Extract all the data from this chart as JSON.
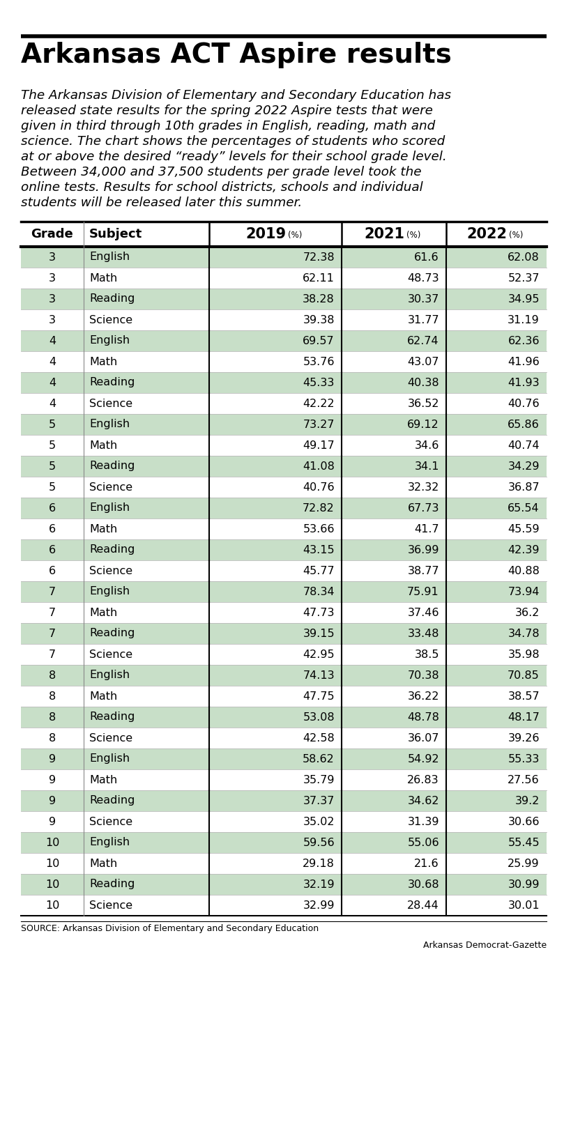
{
  "title": "Arkansas ACT Aspire results",
  "subtitle_lines": [
    "The Arkansas Division of Elementary and Secondary Education has",
    "released state results for the spring 2022 Aspire tests that were",
    "given in third through 10th grades in English, reading, math and",
    "science. The chart shows the percentages of students who scored",
    "at or above the desired “ready” levels for their school grade level.",
    "Between 34,000 and 37,500 students per grade level took the",
    "online tests. Results for school districts, schools and individual",
    "students will be released later this summer."
  ],
  "col_headers": [
    "Grade",
    "Subject",
    "2019",
    "2021",
    "2022"
  ],
  "rows": [
    [
      3,
      "English",
      72.38,
      61.6,
      62.08
    ],
    [
      3,
      "Math",
      62.11,
      48.73,
      52.37
    ],
    [
      3,
      "Reading",
      38.28,
      30.37,
      34.95
    ],
    [
      3,
      "Science",
      39.38,
      31.77,
      31.19
    ],
    [
      4,
      "English",
      69.57,
      62.74,
      62.36
    ],
    [
      4,
      "Math",
      53.76,
      43.07,
      41.96
    ],
    [
      4,
      "Reading",
      45.33,
      40.38,
      41.93
    ],
    [
      4,
      "Science",
      42.22,
      36.52,
      40.76
    ],
    [
      5,
      "English",
      73.27,
      69.12,
      65.86
    ],
    [
      5,
      "Math",
      49.17,
      34.6,
      40.74
    ],
    [
      5,
      "Reading",
      41.08,
      34.1,
      34.29
    ],
    [
      5,
      "Science",
      40.76,
      32.32,
      36.87
    ],
    [
      6,
      "English",
      72.82,
      67.73,
      65.54
    ],
    [
      6,
      "Math",
      53.66,
      41.7,
      45.59
    ],
    [
      6,
      "Reading",
      43.15,
      36.99,
      42.39
    ],
    [
      6,
      "Science",
      45.77,
      38.77,
      40.88
    ],
    [
      7,
      "English",
      78.34,
      75.91,
      73.94
    ],
    [
      7,
      "Math",
      47.73,
      37.46,
      36.2
    ],
    [
      7,
      "Reading",
      39.15,
      33.48,
      34.78
    ],
    [
      7,
      "Science",
      42.95,
      38.5,
      35.98
    ],
    [
      8,
      "English",
      74.13,
      70.38,
      70.85
    ],
    [
      8,
      "Math",
      47.75,
      36.22,
      38.57
    ],
    [
      8,
      "Reading",
      53.08,
      48.78,
      48.17
    ],
    [
      8,
      "Science",
      42.58,
      36.07,
      39.26
    ],
    [
      9,
      "English",
      58.62,
      54.92,
      55.33
    ],
    [
      9,
      "Math",
      35.79,
      26.83,
      27.56
    ],
    [
      9,
      "Reading",
      37.37,
      34.62,
      39.2
    ],
    [
      9,
      "Science",
      35.02,
      31.39,
      30.66
    ],
    [
      10,
      "English",
      59.56,
      55.06,
      55.45
    ],
    [
      10,
      "Math",
      29.18,
      21.6,
      25.99
    ],
    [
      10,
      "Reading",
      32.19,
      30.68,
      30.99
    ],
    [
      10,
      "Science",
      32.99,
      28.44,
      30.01
    ]
  ],
  "highlight_rows": [
    0,
    2,
    4,
    6,
    8,
    10,
    12,
    14,
    16,
    18,
    20,
    22,
    24,
    26,
    28,
    30
  ],
  "highlight_color": "#c8dfc8",
  "bg_color": "#ffffff",
  "source_text": "SOURCE: Arkansas Division of Elementary and Secondary Education",
  "credit_text": "Arkansas Democrat-Gazette"
}
